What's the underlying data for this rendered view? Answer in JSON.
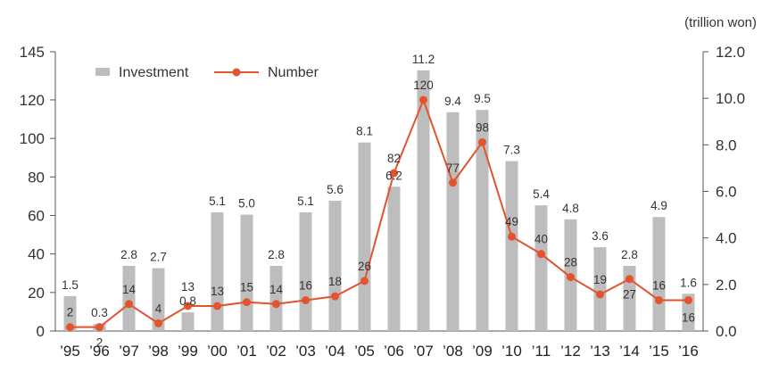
{
  "chart_data": {
    "type": "bar",
    "categories": [
      "’95",
      "’96",
      "’97",
      "’98",
      "’99",
      "’00",
      "’01",
      "’02",
      "’03",
      "’04",
      "’05",
      "’06",
      "’07",
      "’08",
      "’09",
      "’10",
      "’11",
      "’12",
      "’13",
      "’14",
      "’15",
      "’16"
    ],
    "series": [
      {
        "name": "Investment",
        "type": "bar",
        "axis": "right",
        "color": "#bdbdbd",
        "values": [
          1.5,
          0.3,
          2.8,
          2.7,
          0.8,
          5.1,
          5.0,
          2.8,
          5.1,
          5.6,
          8.1,
          6.2,
          11.2,
          9.4,
          9.5,
          7.3,
          5.4,
          4.8,
          3.6,
          2.8,
          4.9,
          1.6
        ],
        "labels": [
          "1.5",
          "0.3",
          "2.8",
          "2.7",
          "0.8",
          "5.1",
          "5.0",
          "2.8",
          "5.1",
          "5.6",
          "8.1",
          "6.2",
          "11.2",
          "9.4",
          "9.5",
          "7.3",
          "5.4",
          "4.8",
          "3.6",
          "2.8",
          "4.9",
          "1.6"
        ]
      },
      {
        "name": "Number",
        "type": "line",
        "axis": "left",
        "color": "#e2532e",
        "values": [
          2,
          2,
          14,
          4,
          13,
          13,
          15,
          14,
          16,
          18,
          26,
          82,
          120,
          77,
          98,
          49,
          40,
          28,
          19,
          27,
          16,
          16
        ],
        "labels": [
          "2",
          "2",
          "14",
          "4",
          "13",
          "13",
          "15",
          "14",
          "16",
          "18",
          "26",
          "82",
          "120",
          "77",
          "98",
          "49",
          "40",
          "28",
          "19",
          "27",
          "16",
          "16"
        ]
      }
    ],
    "y_left": {
      "min": 0,
      "max": 145,
      "ticks": [
        "0",
        "20",
        "40",
        "60",
        "80",
        "100",
        "120",
        "145"
      ],
      "tick_values": [
        0,
        20,
        40,
        60,
        80,
        100,
        120,
        145
      ]
    },
    "y_right": {
      "min": 0,
      "max": 12,
      "ticks": [
        "0.0",
        "2.0",
        "4.0",
        "6.0",
        "8.0",
        "10.0",
        "12.0"
      ],
      "tick_values": [
        0,
        2,
        4,
        6,
        8,
        10,
        12
      ],
      "unit": "(trillion won)"
    },
    "legend": {
      "position": "top-left",
      "items": [
        {
          "label": "Investment",
          "color": "#bdbdbd",
          "shape": "bar"
        },
        {
          "label": "Number",
          "color": "#e2532e",
          "shape": "line-marker"
        }
      ]
    },
    "grid": false
  }
}
